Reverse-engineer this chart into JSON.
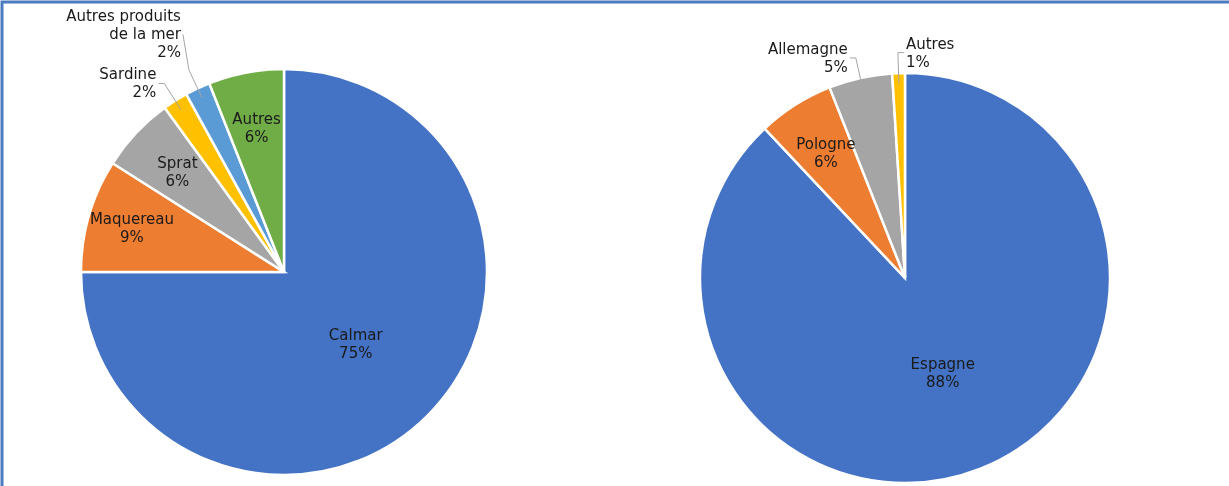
{
  "chart_data": [
    {
      "type": "pie",
      "categories": [
        "Calmar",
        "Maquereau",
        "Sprat",
        "Sardine",
        "Autres produits de la mer",
        "Autres"
      ],
      "values": [
        75,
        9,
        6,
        2,
        2,
        6
      ],
      "colors": [
        "#4472c4",
        "#ed7d31",
        "#a5a5a5",
        "#ffc000",
        "#5b9bd5",
        "#70ad47"
      ],
      "value_labels": [
        "75%",
        "9%",
        "6%",
        "2%",
        "2%",
        "6%"
      ]
    },
    {
      "type": "pie",
      "categories": [
        "Espagne",
        "Pologne",
        "Allemagne",
        "Autres"
      ],
      "values": [
        88,
        6,
        5,
        1
      ],
      "colors": [
        "#4472c4",
        "#ed7d31",
        "#a5a5a5",
        "#ffc000"
      ],
      "value_labels": [
        "88%",
        "6%",
        "5%",
        "1%"
      ]
    }
  ]
}
